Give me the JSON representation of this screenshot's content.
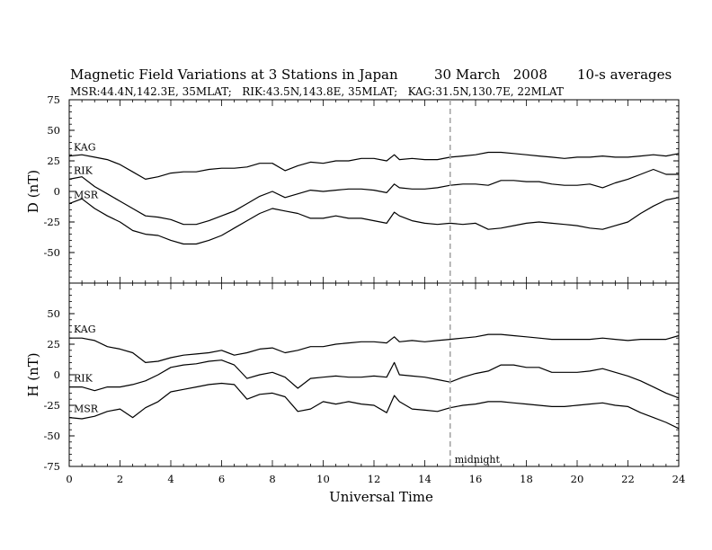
{
  "header": {
    "title": "Magnetic Field Variations at 3 Stations in Japan",
    "date": "30 March   2008",
    "averaging": "10-s averages",
    "stations_line": "MSR:44.4N,142.3E, 35MLAT;   RIK:43.5N,143.8E, 35MLAT;   KAG:31.5N,130.7E, 22MLAT"
  },
  "chart_data": {
    "type": "line",
    "xlabel": "Universal Time",
    "xlim": [
      0,
      24
    ],
    "x_ticks": [
      "0",
      "2",
      "4",
      "6",
      "8",
      "10",
      "12",
      "14",
      "16",
      "18",
      "20",
      "22",
      "24"
    ],
    "marker": {
      "x": 15,
      "label": "midnight",
      "style": "dashed",
      "color": "#a0a0a0"
    },
    "line_color": "#000000",
    "panels": [
      {
        "id": "D",
        "ylabel": "D (nT)",
        "ylim": [
          -75,
          75
        ],
        "y_ticks": [
          "75",
          "50",
          "25",
          "0",
          "-25",
          "-50"
        ],
        "series": [
          {
            "name": "KAG",
            "x": [
              0,
              0.5,
              1,
              1.5,
              2,
              2.5,
              3,
              3.5,
              4,
              4.5,
              5,
              5.5,
              6,
              6.5,
              7,
              7.5,
              8,
              8.5,
              9,
              9.5,
              10,
              10.5,
              11,
              11.5,
              12,
              12.5,
              12.8,
              13,
              13.5,
              14,
              14.5,
              15,
              15.5,
              16,
              16.5,
              17,
              17.5,
              18,
              18.5,
              19,
              19.5,
              20,
              20.5,
              21,
              21.5,
              22,
              22.5,
              23,
              23.5,
              24
            ],
            "y": [
              29,
              30,
              28,
              26,
              22,
              16,
              10,
              12,
              15,
              16,
              16,
              18,
              19,
              19,
              20,
              23,
              23,
              17,
              21,
              24,
              23,
              25,
              25,
              27,
              27,
              25,
              30,
              26,
              27,
              26,
              26,
              28,
              29,
              30,
              32,
              32,
              31,
              30,
              29,
              28,
              27,
              28,
              28,
              29,
              28,
              28,
              29,
              30,
              29,
              31
            ]
          },
          {
            "name": "RIK",
            "x": [
              0,
              0.5,
              1,
              1.5,
              2,
              2.5,
              3,
              3.5,
              4,
              4.5,
              5,
              5.5,
              6,
              6.5,
              7,
              7.5,
              8,
              8.5,
              9,
              9.5,
              10,
              10.5,
              11,
              11.5,
              12,
              12.5,
              12.8,
              13,
              13.5,
              14,
              14.5,
              15,
              15.5,
              16,
              16.5,
              17,
              17.5,
              18,
              18.5,
              19,
              19.5,
              20,
              20.5,
              21,
              21.5,
              22,
              22.5,
              23,
              23.5,
              24
            ],
            "y": [
              10,
              12,
              4,
              -2,
              -8,
              -14,
              -20,
              -21,
              -23,
              -27,
              -27,
              -24,
              -20,
              -16,
              -10,
              -4,
              0,
              -5,
              -2,
              1,
              0,
              1,
              2,
              2,
              1,
              -1,
              6,
              3,
              2,
              2,
              3,
              5,
              6,
              6,
              5,
              9,
              9,
              8,
              8,
              6,
              5,
              5,
              6,
              3,
              7,
              10,
              14,
              18,
              14,
              14
            ]
          },
          {
            "name": "MSR",
            "x": [
              0,
              0.5,
              1,
              1.5,
              2,
              2.5,
              3,
              3.5,
              4,
              4.5,
              5,
              5.5,
              6,
              6.5,
              7,
              7.5,
              8,
              8.5,
              9,
              9.5,
              10,
              10.5,
              11,
              11.5,
              12,
              12.5,
              12.8,
              13,
              13.5,
              14,
              14.5,
              15,
              15.5,
              16,
              16.5,
              17,
              17.5,
              18,
              18.5,
              19,
              19.5,
              20,
              20.5,
              21,
              21.5,
              22,
              22.5,
              23,
              23.5,
              24
            ],
            "y": [
              -10,
              -6,
              -14,
              -20,
              -25,
              -32,
              -35,
              -36,
              -40,
              -43,
              -43,
              -40,
              -36,
              -30,
              -24,
              -18,
              -14,
              -16,
              -18,
              -22,
              -22,
              -20,
              -22,
              -22,
              -24,
              -26,
              -17,
              -20,
              -24,
              -26,
              -27,
              -26,
              -27,
              -26,
              -31,
              -30,
              -28,
              -26,
              -25,
              -26,
              -27,
              -28,
              -30,
              -31,
              -28,
              -25,
              -18,
              -12,
              -7,
              -5
            ]
          }
        ]
      },
      {
        "id": "H",
        "ylabel": "H (nT)",
        "ylim": [
          -75,
          75
        ],
        "y_ticks": [
          "50",
          "25",
          "0",
          "-25",
          "-50",
          "-75"
        ],
        "series": [
          {
            "name": "KAG",
            "x": [
              0,
              0.5,
              1,
              1.5,
              2,
              2.5,
              3,
              3.5,
              4,
              4.5,
              5,
              5.5,
              6,
              6.5,
              7,
              7.5,
              8,
              8.5,
              9,
              9.5,
              10,
              10.5,
              11,
              11.5,
              12,
              12.5,
              12.8,
              13,
              13.5,
              14,
              14.5,
              15,
              15.5,
              16,
              16.5,
              17,
              17.5,
              18,
              18.5,
              19,
              19.5,
              20,
              20.5,
              21,
              21.5,
              22,
              22.5,
              23,
              23.5,
              24
            ],
            "y": [
              30,
              30,
              28,
              23,
              21,
              18,
              10,
              11,
              14,
              16,
              17,
              18,
              20,
              16,
              18,
              21,
              22,
              18,
              20,
              23,
              23,
              25,
              26,
              27,
              27,
              26,
              31,
              27,
              28,
              27,
              28,
              29,
              30,
              31,
              33,
              33,
              32,
              31,
              30,
              29,
              29,
              29,
              29,
              30,
              29,
              28,
              29,
              29,
              29,
              32
            ]
          },
          {
            "name": "RIK",
            "x": [
              0,
              0.5,
              1,
              1.5,
              2,
              2.5,
              3,
              3.5,
              4,
              4.5,
              5,
              5.5,
              6,
              6.5,
              7,
              7.5,
              8,
              8.5,
              9,
              9.5,
              10,
              10.5,
              11,
              11.5,
              12,
              12.5,
              12.8,
              13,
              13.5,
              14,
              14.5,
              15,
              15.5,
              16,
              16.5,
              17,
              17.5,
              18,
              18.5,
              19,
              19.5,
              20,
              20.5,
              21,
              21.5,
              22,
              22.5,
              23,
              23.5,
              24
            ],
            "y": [
              -10,
              -10,
              -13,
              -10,
              -10,
              -8,
              -5,
              0,
              6,
              8,
              9,
              11,
              12,
              8,
              -3,
              0,
              2,
              -2,
              -11,
              -3,
              -2,
              -1,
              -2,
              -2,
              -1,
              -2,
              10,
              0,
              -1,
              -2,
              -4,
              -6,
              -2,
              1,
              3,
              8,
              8,
              6,
              6,
              2,
              2,
              2,
              3,
              5,
              2,
              -1,
              -5,
              -10,
              -15,
              -19
            ]
          },
          {
            "name": "MSR",
            "x": [
              0,
              0.5,
              1,
              1.5,
              2,
              2.5,
              3,
              3.5,
              4,
              4.5,
              5,
              5.5,
              6,
              6.5,
              7,
              7.5,
              8,
              8.5,
              9,
              9.5,
              10,
              10.5,
              11,
              11.5,
              12,
              12.5,
              12.8,
              13,
              13.5,
              14,
              14.5,
              15,
              15.5,
              16,
              16.5,
              17,
              17.5,
              18,
              18.5,
              19,
              19.5,
              20,
              20.5,
              21,
              21.5,
              22,
              22.5,
              23,
              23.5,
              24
            ],
            "y": [
              -35,
              -36,
              -34,
              -30,
              -28,
              -35,
              -27,
              -22,
              -14,
              -12,
              -10,
              -8,
              -7,
              -8,
              -20,
              -16,
              -15,
              -18,
              -30,
              -28,
              -22,
              -24,
              -22,
              -24,
              -25,
              -31,
              -17,
              -22,
              -28,
              -29,
              -30,
              -27,
              -25,
              -24,
              -22,
              -22,
              -23,
              -24,
              -25,
              -26,
              -26,
              -25,
              -24,
              -23,
              -25,
              -26,
              -31,
              -35,
              -39,
              -44
            ]
          }
        ]
      }
    ]
  }
}
